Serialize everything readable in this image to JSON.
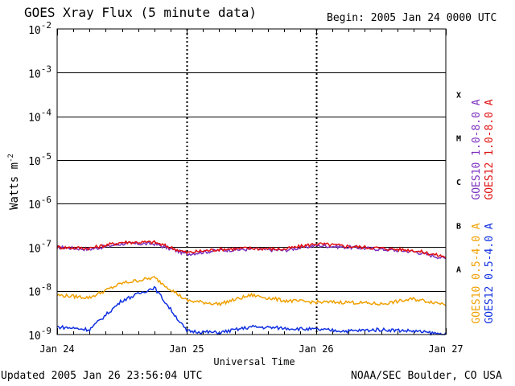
{
  "header": {
    "title": "GOES Xray Flux (5 minute data)",
    "begin": "Begin:  2005 Jan 24 0000 UTC"
  },
  "footer": {
    "updated": "Updated 2005 Jan 26 23:56:04 UTC",
    "credit": "NOAA/SEC Boulder, CO USA"
  },
  "chart_data": {
    "type": "line",
    "title": "GOES Xray Flux (5 minute data)",
    "xlabel": "Universal Time",
    "ylabel": "Watts m",
    "ylabel_exponent": "-2",
    "yscale": "log",
    "ylim": [
      1e-09,
      0.01
    ],
    "xlim": [
      "2005-01-24 00:00",
      "2005-01-27 00:00"
    ],
    "x_ticks": [
      "Jan 24",
      "Jan 25",
      "Jan 26",
      "Jan 27"
    ],
    "y_ticks": [
      {
        "value": 0.01,
        "base": "10",
        "exp": "-2"
      },
      {
        "value": 0.001,
        "base": "10",
        "exp": "-3"
      },
      {
        "value": 0.0001,
        "base": "10",
        "exp": "-4"
      },
      {
        "value": 1e-05,
        "base": "10",
        "exp": "-5"
      },
      {
        "value": 1e-06,
        "base": "10",
        "exp": "-6"
      },
      {
        "value": 1e-07,
        "base": "10",
        "exp": "-7"
      },
      {
        "value": 1e-08,
        "base": "10",
        "exp": "-8"
      },
      {
        "value": 1e-09,
        "base": "10",
        "exp": "-9"
      }
    ],
    "flare_classes": [
      {
        "label": "X",
        "min": 0.0001,
        "max": 0.001
      },
      {
        "label": "M",
        "min": 1e-05,
        "max": 0.0001
      },
      {
        "label": "C",
        "min": 1e-06,
        "max": 1e-05
      },
      {
        "label": "B",
        "min": 1e-07,
        "max": 1e-06
      },
      {
        "label": "A",
        "min": 1e-08,
        "max": 1e-07
      }
    ],
    "colors": {
      "goes10_long": "#7b2fbe",
      "goes12_long": "#e01010",
      "goes10_short": "#f0a000",
      "goes12_short": "#1030e0"
    },
    "series": [
      {
        "name": "GOES10 1.0-8.0 A",
        "key": "goes10_long",
        "hours": [
          0,
          6,
          12,
          18,
          24,
          30,
          36,
          42,
          48,
          54,
          60,
          66,
          72
        ],
        "values": [
          1e-07,
          9e-08,
          1.2e-07,
          1.2e-07,
          7e-08,
          8.5e-08,
          9e-08,
          8.5e-08,
          1.1e-07,
          1e-07,
          9e-08,
          8e-08,
          5.5e-08
        ]
      },
      {
        "name": "GOES12 1.0-8.0 A",
        "key": "goes12_long",
        "hours": [
          0,
          6,
          12,
          18,
          24,
          30,
          36,
          42,
          48,
          54,
          60,
          66,
          72
        ],
        "values": [
          1e-07,
          9.5e-08,
          1.3e-07,
          1.3e-07,
          7.5e-08,
          9e-08,
          9.5e-08,
          9e-08,
          1.2e-07,
          1.05e-07,
          9.5e-08,
          8.5e-08,
          6e-08
        ]
      },
      {
        "name": "GOES10 0.5-4.0 A",
        "key": "goes10_short",
        "hours": [
          0,
          6,
          12,
          18,
          24,
          30,
          36,
          42,
          48,
          54,
          60,
          66,
          72
        ],
        "values": [
          8e-09,
          7e-09,
          1.5e-08,
          2e-08,
          6e-09,
          5e-09,
          8e-09,
          6e-09,
          5.5e-09,
          5.5e-09,
          5e-09,
          6.5e-09,
          5e-09
        ]
      },
      {
        "name": "GOES12 0.5-4.0 A",
        "key": "goes12_short",
        "hours": [
          0,
          6,
          12,
          18,
          24,
          30,
          36,
          42,
          48,
          54,
          60,
          66,
          72
        ],
        "values": [
          1.5e-09,
          1.3e-09,
          6e-09,
          1.2e-08,
          1.2e-09,
          1.1e-09,
          1.5e-09,
          1.4e-09,
          1.3e-09,
          1.2e-09,
          1.3e-09,
          1.2e-09,
          1e-09
        ]
      }
    ]
  }
}
